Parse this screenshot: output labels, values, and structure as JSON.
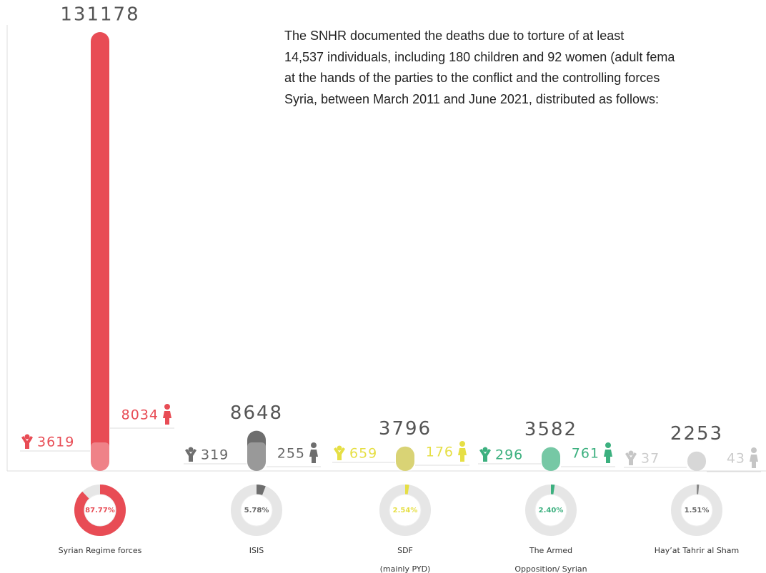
{
  "chart_data": {
    "type": "infographic",
    "paragraph": [
      "The SNHR documented the deaths due to torture of at least",
      "14,537 individuals, including 180 children and 92 women (adult fema",
      "at the hands of the parties to the conflict and the controlling forces",
      "Syria, between March 2011 and June 2021, distributed as follows:"
    ],
    "groups": [
      {
        "name": [
          "Syrian Regime forces"
        ],
        "color": "#e84c55",
        "total": 131178,
        "children": 3619,
        "women": 8034,
        "share": 87.77,
        "share_label": "87.77%"
      },
      {
        "name": [
          "ISIS"
        ],
        "color": "#6e6e6e",
        "total": 8648,
        "children": 319,
        "women": 255,
        "share": 5.78,
        "share_label": "5.78%"
      },
      {
        "name": [
          "SDF",
          "(mainly PYD)"
        ],
        "color": "#e6df45",
        "total": 3796,
        "children": 659,
        "women": 176,
        "share": 2.54,
        "share_label": "2.54%"
      },
      {
        "name": [
          "The Armed",
          "Opposition/ Syrian"
        ],
        "color": "#3cb07f",
        "total": 3582,
        "children": 296,
        "women": 761,
        "share": 2.4,
        "share_label": "2.40%"
      },
      {
        "name": [
          "Hay’at Tahrir al Sham"
        ],
        "color": "#c6c6c6",
        "total": 2253,
        "children": 37,
        "women": 43,
        "share": 1.51,
        "share_label": "1.51%"
      }
    ]
  }
}
